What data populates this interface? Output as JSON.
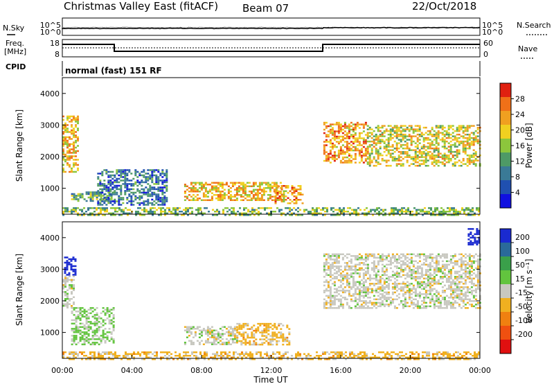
{
  "header": {
    "title": "Christmas Valley East (fitACF)",
    "beam": "Beam 07",
    "date": "22/Oct/2018"
  },
  "params": {
    "nsky_label": "N.Sky",
    "nsearch_label": "N.Search",
    "noise_ticks": [
      "10^5",
      "10^0"
    ],
    "freq_label_1": "Freq.",
    "freq_label_2": "[MHz]",
    "freq_ticks": [
      "18",
      "8"
    ],
    "nave_label": "Nave",
    "nave_ticks": [
      "60",
      "0"
    ],
    "cpid_label": "CPID",
    "cpid_value": "normal (fast) 151 RF"
  },
  "axes": {
    "ylabel": "Slant Range [km]",
    "xlabel": "Time UT",
    "yticks": [
      "1000",
      "2000",
      "3000",
      "4000"
    ],
    "xticks": [
      "00:00",
      "04:00",
      "08:00",
      "12:00",
      "16:00",
      "20:00",
      "00:00"
    ]
  },
  "power_scale": {
    "label": "Power [dB]",
    "ticks": [
      "4",
      "8",
      "12",
      "16",
      "20",
      "24",
      "28"
    ],
    "colors": [
      "#1010e0",
      "#2050b0",
      "#3a7a96",
      "#4e9a66",
      "#8cc63c",
      "#f0d020",
      "#f0a020",
      "#f07018",
      "#e02010"
    ]
  },
  "velocity_scale": {
    "label": "Velocity [m s⁻¹]",
    "ticks": [
      "200",
      "100",
      "50",
      "15",
      "-15",
      "-50",
      "-100",
      "-200"
    ],
    "colors": [
      "#1a2ad0",
      "#2a6a9a",
      "#3aa04a",
      "#62c43e",
      "#c8c8c0",
      "#f0b020",
      "#f08010",
      "#f05010",
      "#e01010"
    ]
  },
  "chart_data": [
    {
      "type": "heatmap",
      "panel": "power",
      "x_unit": "hours UT",
      "y_unit": "km",
      "xlim": [
        0,
        24
      ],
      "ylim": [
        180,
        4500
      ],
      "clim": [
        0,
        30
      ],
      "regions": [
        {
          "t": [
            0.0,
            0.9
          ],
          "r": [
            1500,
            3300
          ],
          "v": 20
        },
        {
          "t": [
            0.5,
            3.0
          ],
          "r": [
            600,
            900
          ],
          "v": 12
        },
        {
          "t": [
            2.0,
            6.0
          ],
          "r": [
            500,
            1600
          ],
          "v": 8
        },
        {
          "t": [
            7.0,
            12.5
          ],
          "r": [
            600,
            1200
          ],
          "v": 20
        },
        {
          "t": [
            12.2,
            13.8
          ],
          "r": [
            500,
            1100
          ],
          "v": 22
        },
        {
          "t": [
            15.0,
            17.5
          ],
          "r": [
            1800,
            3100
          ],
          "v": 22
        },
        {
          "t": [
            17.5,
            24.0
          ],
          "r": [
            1700,
            3000
          ],
          "v": 18
        },
        {
          "t": [
            0.0,
            24.0
          ],
          "r": [
            180,
            400
          ],
          "v": 14
        }
      ]
    },
    {
      "type": "heatmap",
      "panel": "velocity",
      "x_unit": "hours UT",
      "y_unit": "km",
      "xlim": [
        0,
        24
      ],
      "ylim": [
        180,
        4500
      ],
      "clim": [
        -200,
        200
      ],
      "regions": [
        {
          "t": [
            0.1,
            0.8
          ],
          "r": [
            2800,
            3400
          ],
          "v": 220
        },
        {
          "t": [
            0.0,
            0.6
          ],
          "r": [
            1800,
            2800
          ],
          "v": 0
        },
        {
          "t": [
            0.5,
            3.0
          ],
          "r": [
            600,
            1800
          ],
          "v": 30
        },
        {
          "t": [
            7.0,
            10.0
          ],
          "r": [
            600,
            1200
          ],
          "v": 0
        },
        {
          "t": [
            10.0,
            13.0
          ],
          "r": [
            600,
            1300
          ],
          "v": -40
        },
        {
          "t": [
            15.0,
            24.0
          ],
          "r": [
            1800,
            3500
          ],
          "v": 0
        },
        {
          "t": [
            23.3,
            24.0
          ],
          "r": [
            3800,
            4300
          ],
          "v": 220
        },
        {
          "t": [
            0.0,
            24.0
          ],
          "r": [
            180,
            400
          ],
          "v": -40
        }
      ]
    }
  ]
}
